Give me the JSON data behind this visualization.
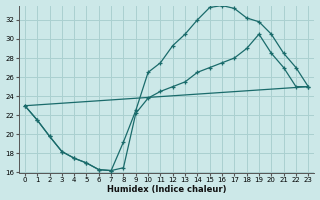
{
  "xlabel": "Humidex (Indice chaleur)",
  "bg_color": "#cce8e8",
  "grid_color": "#aad0d0",
  "line_color": "#1a6b6b",
  "xlim": [
    -0.5,
    23.5
  ],
  "ylim": [
    16,
    33.5
  ],
  "yticks": [
    16,
    18,
    20,
    22,
    24,
    26,
    28,
    30,
    32
  ],
  "xticks": [
    0,
    1,
    2,
    3,
    4,
    5,
    6,
    7,
    8,
    9,
    10,
    11,
    12,
    13,
    14,
    15,
    16,
    17,
    18,
    19,
    20,
    21,
    22,
    23
  ],
  "curve1_x": [
    0,
    1,
    2,
    3,
    4,
    5,
    6,
    7,
    8,
    9,
    10,
    11,
    12,
    13,
    14,
    15,
    16,
    17,
    18,
    19,
    20,
    21,
    22,
    23
  ],
  "curve1_y": [
    23.0,
    21.5,
    19.8,
    18.2,
    17.5,
    17.0,
    16.3,
    16.2,
    19.2,
    22.5,
    26.5,
    27.5,
    29.3,
    30.5,
    32.0,
    33.3,
    33.5,
    33.2,
    32.2,
    31.8,
    30.5,
    28.5,
    27.0,
    25.0
  ],
  "curve2_x": [
    0,
    1,
    2,
    3,
    4,
    5,
    6,
    7,
    8,
    9,
    10,
    11,
    12,
    13,
    14,
    15,
    16,
    17,
    18,
    19,
    20,
    21,
    22,
    23
  ],
  "curve2_y": [
    23.0,
    21.5,
    19.8,
    18.2,
    17.5,
    17.0,
    16.3,
    16.2,
    16.5,
    22.2,
    23.8,
    24.5,
    25.0,
    25.5,
    26.5,
    27.0,
    27.5,
    28.0,
    29.0,
    30.5,
    28.5,
    27.0,
    25.0,
    25.0
  ],
  "curve3_x": [
    0,
    23
  ],
  "curve3_y": [
    23.0,
    25.0
  ]
}
